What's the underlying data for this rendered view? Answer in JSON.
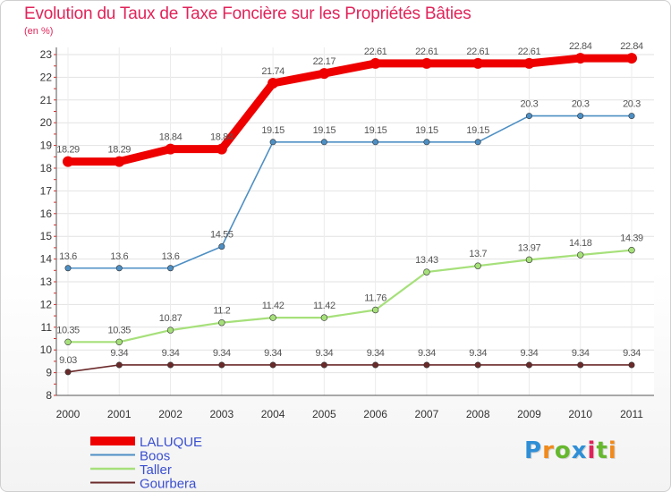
{
  "title": "Evolution du Taux de Taxe Foncière sur les Propriétés Bâties",
  "unit_label": "(en %)",
  "logo": {
    "letters": [
      "P",
      "r",
      "o",
      "x",
      "i",
      "t",
      "i"
    ],
    "colors": [
      "#2f8fd6",
      "#f08a1c",
      "#66b82e",
      "#2f8fd6",
      "#e0245a",
      "#66b82e",
      "#f08a1c"
    ]
  },
  "chart_data": {
    "type": "line",
    "x": [
      "2000",
      "2001",
      "2002",
      "2003",
      "2004",
      "2005",
      "2006",
      "2007",
      "2008",
      "2009",
      "2010",
      "2011"
    ],
    "ylim": [
      8,
      23
    ],
    "yticks": [
      "8",
      "9",
      "10",
      "11",
      "12",
      "13",
      "14",
      "15",
      "16",
      "17",
      "18",
      "19",
      "20",
      "21",
      "22",
      "23"
    ],
    "grid": true,
    "legend_position": "bottom-left",
    "series": [
      {
        "name": "LALUQUE",
        "color": "#ee0000",
        "values": [
          18.29,
          18.29,
          18.84,
          18.84,
          21.74,
          22.17,
          22.61,
          22.61,
          22.61,
          22.61,
          22.84,
          22.84
        ],
        "labels": [
          "18.29",
          "18.29",
          "18.84",
          "18.84",
          "21.74",
          "22.17",
          "22.61",
          "22.61",
          "22.61",
          "22.61",
          "22.84",
          "22.84"
        ]
      },
      {
        "name": "Boos",
        "color": "#4d8fc4",
        "values": [
          13.6,
          13.6,
          13.6,
          14.55,
          19.15,
          19.15,
          19.15,
          19.15,
          19.15,
          20.3,
          20.3,
          20.3
        ],
        "labels": [
          "13.6",
          "13.6",
          "13.6",
          "14.55",
          "19.15",
          "19.15",
          "19.15",
          "19.15",
          "19.15",
          "20.3",
          "20.3",
          "20.3"
        ]
      },
      {
        "name": "Taller",
        "color": "#a6e07a",
        "values": [
          10.35,
          10.35,
          10.87,
          11.2,
          11.42,
          11.42,
          11.76,
          13.43,
          13.7,
          13.97,
          14.18,
          14.39
        ],
        "labels": [
          "10.35",
          "10.35",
          "10.87",
          "11.2",
          "11.42",
          "11.42",
          "11.76",
          "13.43",
          "13.7",
          "13.97",
          "14.18",
          "14.39"
        ]
      },
      {
        "name": "Gourbera",
        "color": "#6b2a2a",
        "values": [
          9.03,
          9.34,
          9.34,
          9.34,
          9.34,
          9.34,
          9.34,
          9.34,
          9.34,
          9.34,
          9.34,
          9.34
        ],
        "labels": [
          "9.03",
          "9.34",
          "9.34",
          "9.34",
          "9.34",
          "9.34",
          "9.34",
          "9.34",
          "9.34",
          "9.34",
          "9.34",
          "9.34"
        ]
      }
    ]
  }
}
